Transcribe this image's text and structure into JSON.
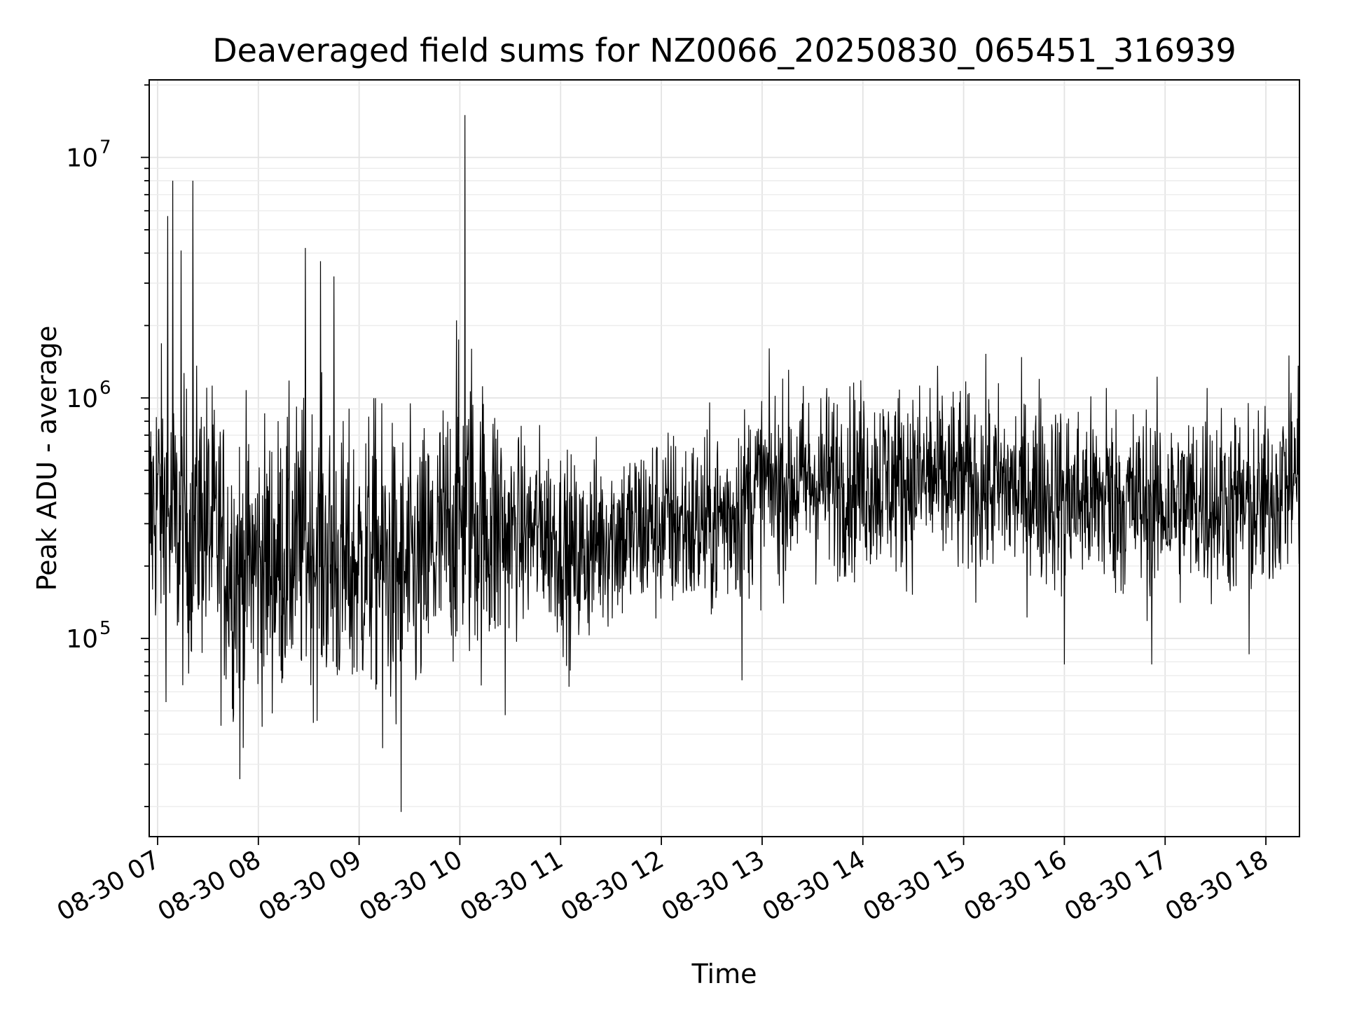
{
  "chart_data": {
    "type": "line",
    "title": "Deaveraged field sums for NZ0066_20250830_065451_316939",
    "xlabel": "Time",
    "ylabel": "Peak ADU - average",
    "yscale": "log",
    "ylim": [
      15000,
      21000000
    ],
    "xlim": [
      "2025-08-30 06:55",
      "2025-08-30 18:20"
    ],
    "x_tick_labels": [
      "08-30 07",
      "08-30 08",
      "08-30 09",
      "08-30 10",
      "08-30 11",
      "08-30 12",
      "08-30 13",
      "08-30 14",
      "08-30 15",
      "08-30 16",
      "08-30 17",
      "08-30 18"
    ],
    "x_tick_times": [
      "2025-08-30 07:00",
      "2025-08-30 08:00",
      "2025-08-30 09:00",
      "2025-08-30 10:00",
      "2025-08-30 11:00",
      "2025-08-30 12:00",
      "2025-08-30 13:00",
      "2025-08-30 14:00",
      "2025-08-30 15:00",
      "2025-08-30 16:00",
      "2025-08-30 17:00",
      "2025-08-30 18:00"
    ],
    "y_tick_labels": [
      {
        "base": "10",
        "exp": "5",
        "value": 100000
      },
      {
        "base": "10",
        "exp": "6",
        "value": 1000000
      },
      {
        "base": "10",
        "exp": "7",
        "value": 10000000
      }
    ],
    "grid": true,
    "line_color": "#000000",
    "series": [
      {
        "x": [
          "2025-08-30 06:55",
          "2025-08-30 07:00",
          "2025-08-30 07:05",
          "2025-08-30 07:10",
          "2025-08-30 07:15",
          "2025-08-30 07:20",
          "2025-08-30 07:25",
          "2025-08-30 07:30",
          "2025-08-30 07:35",
          "2025-08-30 07:40",
          "2025-08-30 07:45",
          "2025-08-30 07:50",
          "2025-08-30 07:55",
          "2025-08-30 08:00",
          "2025-08-30 08:10",
          "2025-08-30 08:20",
          "2025-08-30 08:30",
          "2025-08-30 08:40",
          "2025-08-30 08:50",
          "2025-08-30 09:00",
          "2025-08-30 09:10",
          "2025-08-30 09:20",
          "2025-08-30 09:30",
          "2025-08-30 09:40",
          "2025-08-30 09:50",
          "2025-08-30 10:00",
          "2025-08-30 10:10",
          "2025-08-30 10:20",
          "2025-08-30 10:30",
          "2025-08-30 10:40",
          "2025-08-30 10:50",
          "2025-08-30 11:00",
          "2025-08-30 11:10",
          "2025-08-30 11:20",
          "2025-08-30 11:30",
          "2025-08-30 11:40",
          "2025-08-30 11:50",
          "2025-08-30 12:00",
          "2025-08-30 12:10",
          "2025-08-30 12:20",
          "2025-08-30 12:30",
          "2025-08-30 12:40",
          "2025-08-30 12:50",
          "2025-08-30 13:00",
          "2025-08-30 13:30",
          "2025-08-30 14:00",
          "2025-08-30 14:30",
          "2025-08-30 15:00",
          "2025-08-30 15:30",
          "2025-08-30 16:00",
          "2025-08-30 16:30",
          "2025-08-30 17:00",
          "2025-08-30 17:30",
          "2025-08-30 18:00",
          "2025-08-30 18:10",
          "2025-08-30 18:20"
        ],
        "y": [
          300000,
          400000,
          320000,
          280000,
          270000,
          290000,
          330000,
          300000,
          260000,
          220000,
          210000,
          200000,
          210000,
          200000,
          210000,
          230000,
          250000,
          220000,
          190000,
          200000,
          240000,
          190000,
          180000,
          200000,
          260000,
          330000,
          310000,
          290000,
          280000,
          270000,
          290000,
          250000,
          210000,
          250000,
          280000,
          270000,
          290000,
          300000,
          300000,
          290000,
          300000,
          330000,
          380000,
          430000,
          450000,
          460000,
          460000,
          440000,
          420000,
          390000,
          370000,
          360000,
          370000,
          350000,
          450000,
          480000
        ]
      }
    ],
    "spikes": [
      {
        "x": "2025-08-30 07:06",
        "y": 5700000
      },
      {
        "x": "2025-08-30 07:09",
        "y": 8000000
      },
      {
        "x": "2025-08-30 07:21",
        "y": 8000000
      },
      {
        "x": "2025-08-30 07:14",
        "y": 4100000
      },
      {
        "x": "2025-08-30 08:28",
        "y": 4200000
      },
      {
        "x": "2025-08-30 08:37",
        "y": 3700000
      },
      {
        "x": "2025-08-30 08:45",
        "y": 3200000
      },
      {
        "x": "2025-08-30 09:58",
        "y": 2100000
      },
      {
        "x": "2025-08-30 10:03",
        "y": 15000000
      },
      {
        "x": "2025-08-30 10:07",
        "y": 1600000
      },
      {
        "x": "2025-08-30 15:45",
        "y": 1200000
      },
      {
        "x": "2025-08-30 14:40",
        "y": 1100000
      },
      {
        "x": "2025-08-30 16:25",
        "y": 1100000
      },
      {
        "x": "2025-08-30 17:25",
        "y": 1100000
      },
      {
        "x": "2025-08-30 18:15",
        "y": 1050000
      }
    ],
    "dips": [
      {
        "x": "2025-08-30 07:49",
        "y": 26000
      },
      {
        "x": "2025-08-30 07:45",
        "y": 45000
      },
      {
        "x": "2025-08-30 09:14",
        "y": 35000
      },
      {
        "x": "2025-08-30 09:25",
        "y": 19000
      },
      {
        "x": "2025-08-30 09:22",
        "y": 44000
      },
      {
        "x": "2025-08-30 10:27",
        "y": 48000
      },
      {
        "x": "2025-08-30 11:05",
        "y": 63000
      },
      {
        "x": "2025-08-30 12:48",
        "y": 67000
      },
      {
        "x": "2025-08-30 16:00",
        "y": 78000
      },
      {
        "x": "2025-08-30 16:52",
        "y": 78000
      },
      {
        "x": "2025-08-30 17:50",
        "y": 86000
      }
    ]
  }
}
